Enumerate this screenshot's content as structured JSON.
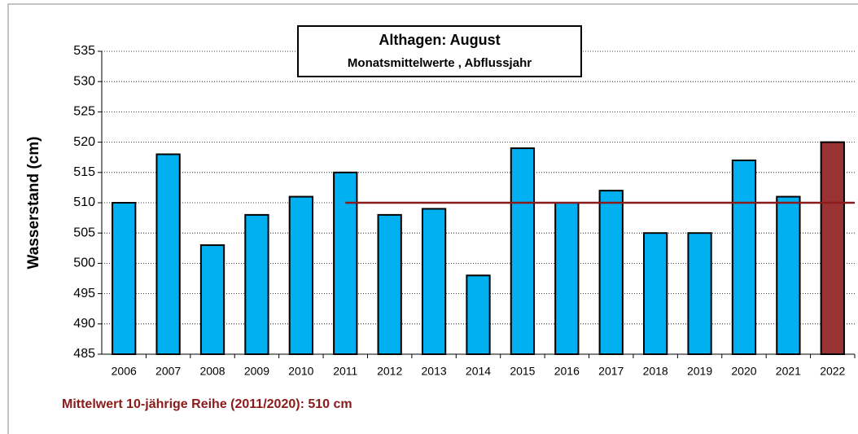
{
  "chart_data": {
    "type": "bar",
    "title": "Althagen: August",
    "subtitle": "Monatsmittelwerte , Abflussjahr",
    "y_label": "Wasserstand (cm)",
    "note": "Mittelwert 10-jährige Reihe (2011/2020): 510 cm",
    "categories": [
      "2006",
      "2007",
      "2008",
      "2009",
      "2010",
      "2011",
      "2012",
      "2013",
      "2014",
      "2015",
      "2016",
      "2017",
      "2018",
      "2019",
      "2020",
      "2021",
      "2022"
    ],
    "values": [
      510,
      518,
      503,
      508,
      511,
      515,
      508,
      509,
      498,
      519,
      510,
      512,
      505,
      505,
      517,
      511,
      520
    ],
    "colors": [
      "#00b0f0",
      "#00b0f0",
      "#00b0f0",
      "#00b0f0",
      "#00b0f0",
      "#00b0f0",
      "#00b0f0",
      "#00b0f0",
      "#00b0f0",
      "#00b0f0",
      "#00b0f0",
      "#00b0f0",
      "#00b0f0",
      "#00b0f0",
      "#00b0f0",
      "#00b0f0",
      "#993333"
    ],
    "mean": {
      "from": "2011",
      "value": 510,
      "color": "#8b1a1a"
    },
    "ylim": [
      485,
      535
    ],
    "yticks": [
      485,
      490,
      495,
      500,
      505,
      510,
      515,
      520,
      525,
      530,
      535
    ],
    "grid": true
  }
}
